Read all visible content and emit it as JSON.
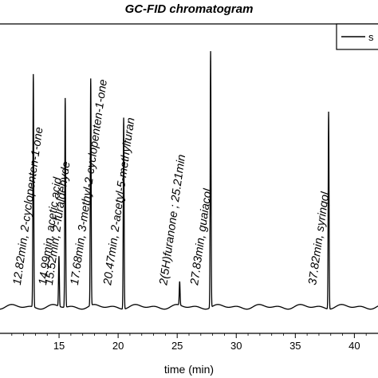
{
  "chart_data": {
    "type": "line",
    "title": "GC-FID chromatogram",
    "xlabel": "time (min)",
    "ylabel": "",
    "xlim": [
      10,
      42
    ],
    "ylim": [
      0,
      105
    ],
    "x_ticks": [
      15,
      20,
      25,
      30,
      35,
      40
    ],
    "grid": false,
    "legend": {
      "placement": "top-right",
      "entries": [
        "s"
      ]
    },
    "series": [
      {
        "name": "s",
        "baseline": 9,
        "peaks": [
          {
            "x": 12.82,
            "y": 88,
            "label": "12.82min, 2-cyclopenten-1-one"
          },
          {
            "x": 14.99,
            "y": 26,
            "label": "14.99min, acetic acid"
          },
          {
            "x": 15.52,
            "y": 80,
            "label": "15.52min, 2-furaldehyde"
          },
          {
            "x": 17.68,
            "y": 86,
            "label": "17.68min, 3-methyl-2-cyclopenten-1-one"
          },
          {
            "x": 20.47,
            "y": 74,
            "label": "20.47min, 2-acetyl-5-methylfuran"
          },
          {
            "x": 25.21,
            "y": 17,
            "label": "2(5H)furanone ; 25.21min"
          },
          {
            "x": 27.83,
            "y": 96,
            "label": "27.83min, guaiacol"
          },
          {
            "x": 37.82,
            "y": 76,
            "label": "37.82min, syringol"
          }
        ]
      }
    ]
  }
}
